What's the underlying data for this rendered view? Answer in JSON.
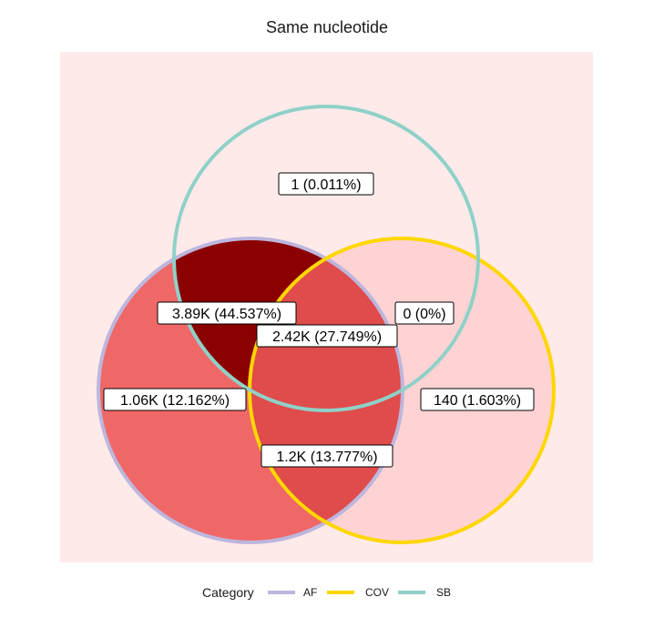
{
  "chart_data": {
    "type": "venn",
    "title": "Same nucleotide",
    "sets": [
      "AF",
      "COV",
      "SB"
    ],
    "regions": [
      {
        "sets": [
          "SB"
        ],
        "label": "1 (0.011%)",
        "count": 1,
        "percent": 0.011,
        "color": "#ffeaea"
      },
      {
        "sets": [
          "AF",
          "SB"
        ],
        "label": "3.89K (44.537%)",
        "count": 3890,
        "percent": 44.537,
        "color": "#8b0000"
      },
      {
        "sets": [
          "COV",
          "SB"
        ],
        "label": "0 (0%)",
        "count": 0,
        "percent": 0,
        "color": "#ffeaea"
      },
      {
        "sets": [
          "AF",
          "COV",
          "SB"
        ],
        "label": "2.42K (27.749%)",
        "count": 2420,
        "percent": 27.749,
        "color": "#e04b4b"
      },
      {
        "sets": [
          "AF"
        ],
        "label": "1.06K (12.162%)",
        "count": 1060,
        "percent": 12.162,
        "color": "#f06767"
      },
      {
        "sets": [
          "COV"
        ],
        "label": "140 (1.603%)",
        "count": 140,
        "percent": 1.603,
        "color": "#ffd3d3"
      },
      {
        "sets": [
          "AF",
          "COV"
        ],
        "label": "1.2K (13.777%)",
        "count": 1200,
        "percent": 13.777,
        "color": "#e04b4b"
      }
    ],
    "legend": {
      "title": "Category",
      "position": "bottom",
      "items": [
        {
          "name": "AF",
          "color": "#bdb6dd"
        },
        {
          "name": "COV",
          "color": "#ffd700"
        },
        {
          "name": "SB",
          "color": "#8fd1c8"
        }
      ]
    },
    "panel_background": "#ffeaea"
  }
}
